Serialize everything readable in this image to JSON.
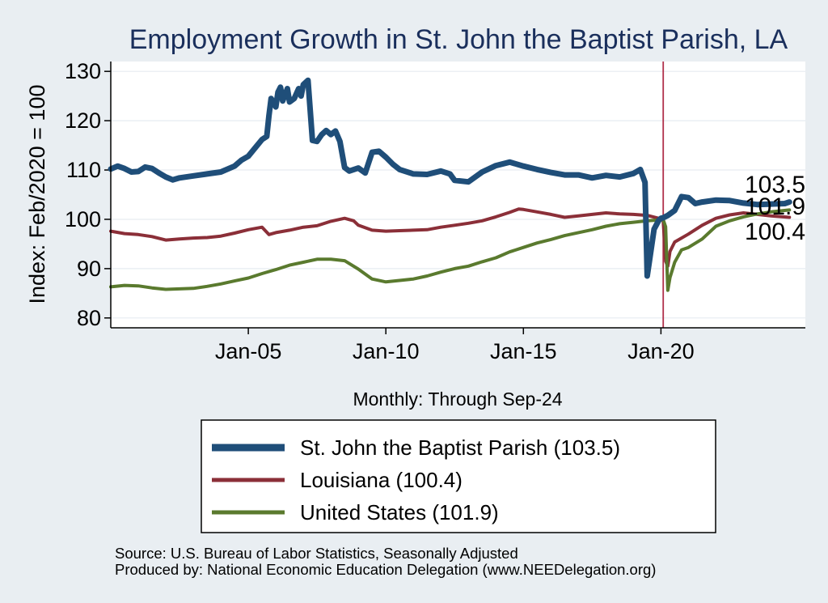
{
  "chart_data": {
    "type": "line",
    "title": "Employment Growth in St. John the Baptist Parish, LA",
    "ylabel": "Index: Feb/2020 = 100",
    "xlabel": "Monthly: Through Sep-24",
    "x_range": [
      2000.0,
      2025.25
    ],
    "ylim": [
      78,
      132
    ],
    "yticks": [
      80,
      90,
      100,
      110,
      120,
      130
    ],
    "xticks": [
      {
        "value": 2005.0,
        "label": "Jan-05"
      },
      {
        "value": 2010.0,
        "label": "Jan-10"
      },
      {
        "value": 2015.0,
        "label": "Jan-15"
      },
      {
        "value": 2020.0,
        "label": "Jan-20"
      }
    ],
    "reference_line": {
      "x": 2020.083,
      "color": "#b0304a"
    },
    "grid": true,
    "legend_position": "bottom",
    "end_labels": [
      "103.5",
      "101.9",
      "100.4"
    ],
    "series": [
      {
        "name": "St. John the Baptist Parish  (103.5)",
        "color": "#1f4e79",
        "width": 7,
        "points": [
          [
            2000.0,
            110.2
          ],
          [
            2000.25,
            110.8
          ],
          [
            2000.5,
            110.3
          ],
          [
            2000.75,
            109.6
          ],
          [
            2001.0,
            109.7
          ],
          [
            2001.25,
            110.6
          ],
          [
            2001.5,
            110.3
          ],
          [
            2001.75,
            109.4
          ],
          [
            2002.0,
            108.6
          ],
          [
            2002.25,
            108.0
          ],
          [
            2002.5,
            108.4
          ],
          [
            2003.0,
            108.8
          ],
          [
            2003.5,
            109.2
          ],
          [
            2004.0,
            109.6
          ],
          [
            2004.5,
            110.8
          ],
          [
            2004.75,
            112.0
          ],
          [
            2005.0,
            112.8
          ],
          [
            2005.25,
            114.5
          ],
          [
            2005.5,
            116.2
          ],
          [
            2005.67,
            116.8
          ],
          [
            2005.75,
            121.0
          ],
          [
            2005.83,
            124.5
          ],
          [
            2006.0,
            122.8
          ],
          [
            2006.08,
            125.8
          ],
          [
            2006.17,
            126.8
          ],
          [
            2006.25,
            124.0
          ],
          [
            2006.42,
            126.5
          ],
          [
            2006.5,
            123.8
          ],
          [
            2006.67,
            124.5
          ],
          [
            2006.83,
            126.5
          ],
          [
            2006.92,
            125.0
          ],
          [
            2007.0,
            127.3
          ],
          [
            2007.17,
            128.2
          ],
          [
            2007.33,
            116.0
          ],
          [
            2007.5,
            115.8
          ],
          [
            2007.67,
            117.2
          ],
          [
            2007.83,
            118.0
          ],
          [
            2008.0,
            117.2
          ],
          [
            2008.17,
            117.9
          ],
          [
            2008.33,
            115.8
          ],
          [
            2008.5,
            110.5
          ],
          [
            2008.67,
            109.8
          ],
          [
            2009.0,
            110.4
          ],
          [
            2009.25,
            109.4
          ],
          [
            2009.5,
            113.6
          ],
          [
            2009.75,
            113.8
          ],
          [
            2010.0,
            112.6
          ],
          [
            2010.25,
            111.2
          ],
          [
            2010.5,
            110.1
          ],
          [
            2011.0,
            109.2
          ],
          [
            2011.5,
            109.1
          ],
          [
            2012.0,
            109.8
          ],
          [
            2012.33,
            109.2
          ],
          [
            2012.5,
            107.9
          ],
          [
            2013.0,
            107.6
          ],
          [
            2013.5,
            109.6
          ],
          [
            2014.0,
            110.9
          ],
          [
            2014.5,
            111.6
          ],
          [
            2015.0,
            110.8
          ],
          [
            2015.5,
            110.1
          ],
          [
            2016.0,
            109.5
          ],
          [
            2016.5,
            109.0
          ],
          [
            2017.0,
            109.0
          ],
          [
            2017.5,
            108.4
          ],
          [
            2018.0,
            108.9
          ],
          [
            2018.5,
            108.6
          ],
          [
            2019.0,
            109.3
          ],
          [
            2019.25,
            110.1
          ],
          [
            2019.42,
            107.5
          ],
          [
            2019.5,
            88.5
          ],
          [
            2019.58,
            91.5
          ],
          [
            2019.75,
            98.0
          ],
          [
            2019.92,
            99.8
          ],
          [
            2020.0,
            100.2
          ],
          [
            2020.08,
            100.3
          ],
          [
            2020.25,
            100.8
          ],
          [
            2020.5,
            101.8
          ],
          [
            2020.75,
            104.6
          ],
          [
            2021.0,
            104.4
          ],
          [
            2021.25,
            103.2
          ],
          [
            2021.5,
            103.5
          ],
          [
            2022.0,
            103.9
          ],
          [
            2022.5,
            103.8
          ],
          [
            2023.0,
            103.3
          ],
          [
            2023.5,
            103.0
          ],
          [
            2024.0,
            103.1
          ],
          [
            2024.5,
            103.2
          ],
          [
            2024.67,
            103.5
          ]
        ]
      },
      {
        "name": "Louisiana (100.4)",
        "color": "#8b2f38",
        "width": 4,
        "points": [
          [
            2000.0,
            97.6
          ],
          [
            2000.5,
            97.1
          ],
          [
            2001.0,
            96.9
          ],
          [
            2001.5,
            96.5
          ],
          [
            2002.0,
            95.8
          ],
          [
            2002.5,
            96.0
          ],
          [
            2003.0,
            96.2
          ],
          [
            2003.5,
            96.3
          ],
          [
            2004.0,
            96.6
          ],
          [
            2004.5,
            97.2
          ],
          [
            2005.0,
            97.9
          ],
          [
            2005.5,
            98.4
          ],
          [
            2005.75,
            96.9
          ],
          [
            2006.0,
            97.3
          ],
          [
            2006.5,
            97.8
          ],
          [
            2007.0,
            98.4
          ],
          [
            2007.5,
            98.7
          ],
          [
            2008.0,
            99.6
          ],
          [
            2008.5,
            100.2
          ],
          [
            2008.83,
            99.7
          ],
          [
            2009.0,
            98.8
          ],
          [
            2009.5,
            97.8
          ],
          [
            2010.0,
            97.6
          ],
          [
            2010.5,
            97.7
          ],
          [
            2011.0,
            97.8
          ],
          [
            2011.5,
            97.9
          ],
          [
            2012.0,
            98.4
          ],
          [
            2012.5,
            98.8
          ],
          [
            2013.0,
            99.2
          ],
          [
            2013.5,
            99.7
          ],
          [
            2014.0,
            100.5
          ],
          [
            2014.5,
            101.4
          ],
          [
            2014.83,
            102.1
          ],
          [
            2015.0,
            102.0
          ],
          [
            2015.5,
            101.5
          ],
          [
            2016.0,
            101.0
          ],
          [
            2016.5,
            100.4
          ],
          [
            2017.0,
            100.7
          ],
          [
            2017.5,
            101.0
          ],
          [
            2018.0,
            101.3
          ],
          [
            2018.5,
            101.1
          ],
          [
            2019.0,
            101.0
          ],
          [
            2019.5,
            100.8
          ],
          [
            2020.0,
            100.1
          ],
          [
            2020.08,
            100.0
          ],
          [
            2020.17,
            91.5
          ],
          [
            2020.25,
            90.5
          ],
          [
            2020.33,
            93.5
          ],
          [
            2020.5,
            95.4
          ],
          [
            2021.0,
            97.0
          ],
          [
            2021.5,
            98.8
          ],
          [
            2022.0,
            100.2
          ],
          [
            2022.5,
            100.9
          ],
          [
            2023.0,
            101.3
          ],
          [
            2023.5,
            101.0
          ],
          [
            2024.0,
            100.7
          ],
          [
            2024.67,
            100.4
          ]
        ]
      },
      {
        "name": "United States (101.9)",
        "color": "#5a7a2e",
        "width": 4,
        "points": [
          [
            2000.0,
            86.3
          ],
          [
            2000.5,
            86.6
          ],
          [
            2001.0,
            86.5
          ],
          [
            2001.5,
            86.1
          ],
          [
            2002.0,
            85.8
          ],
          [
            2002.5,
            85.9
          ],
          [
            2003.0,
            86.0
          ],
          [
            2003.5,
            86.4
          ],
          [
            2004.0,
            86.9
          ],
          [
            2004.5,
            87.5
          ],
          [
            2005.0,
            88.1
          ],
          [
            2005.5,
            89.0
          ],
          [
            2006.0,
            89.8
          ],
          [
            2006.5,
            90.7
          ],
          [
            2007.0,
            91.3
          ],
          [
            2007.5,
            91.9
          ],
          [
            2008.0,
            91.9
          ],
          [
            2008.5,
            91.6
          ],
          [
            2009.0,
            89.9
          ],
          [
            2009.5,
            87.9
          ],
          [
            2010.0,
            87.3
          ],
          [
            2010.5,
            87.6
          ],
          [
            2011.0,
            87.9
          ],
          [
            2011.5,
            88.5
          ],
          [
            2012.0,
            89.3
          ],
          [
            2012.5,
            90.0
          ],
          [
            2013.0,
            90.5
          ],
          [
            2013.5,
            91.4
          ],
          [
            2014.0,
            92.2
          ],
          [
            2014.5,
            93.4
          ],
          [
            2015.0,
            94.3
          ],
          [
            2015.5,
            95.2
          ],
          [
            2016.0,
            95.9
          ],
          [
            2016.5,
            96.7
          ],
          [
            2017.0,
            97.3
          ],
          [
            2017.5,
            97.9
          ],
          [
            2018.0,
            98.6
          ],
          [
            2018.5,
            99.1
          ],
          [
            2019.0,
            99.4
          ],
          [
            2019.5,
            99.7
          ],
          [
            2020.0,
            99.9
          ],
          [
            2020.08,
            100.0
          ],
          [
            2020.17,
            98.5
          ],
          [
            2020.25,
            85.6
          ],
          [
            2020.33,
            88.2
          ],
          [
            2020.5,
            91.3
          ],
          [
            2020.75,
            93.8
          ],
          [
            2021.0,
            94.3
          ],
          [
            2021.5,
            96.0
          ],
          [
            2022.0,
            98.6
          ],
          [
            2022.5,
            99.7
          ],
          [
            2023.0,
            100.5
          ],
          [
            2023.5,
            101.1
          ],
          [
            2024.0,
            101.5
          ],
          [
            2024.67,
            101.9
          ]
        ]
      }
    ]
  },
  "footer": {
    "source": "Source: U.S. Bureau of Labor Statistics, Seasonally Adjusted",
    "produced": "Produced by: National Economic Education Delegation (www.NEEDelegation.org)"
  },
  "colors": {
    "background": "#e9eef2",
    "plot_background": "#ffffff",
    "title": "#1a2f5c"
  }
}
